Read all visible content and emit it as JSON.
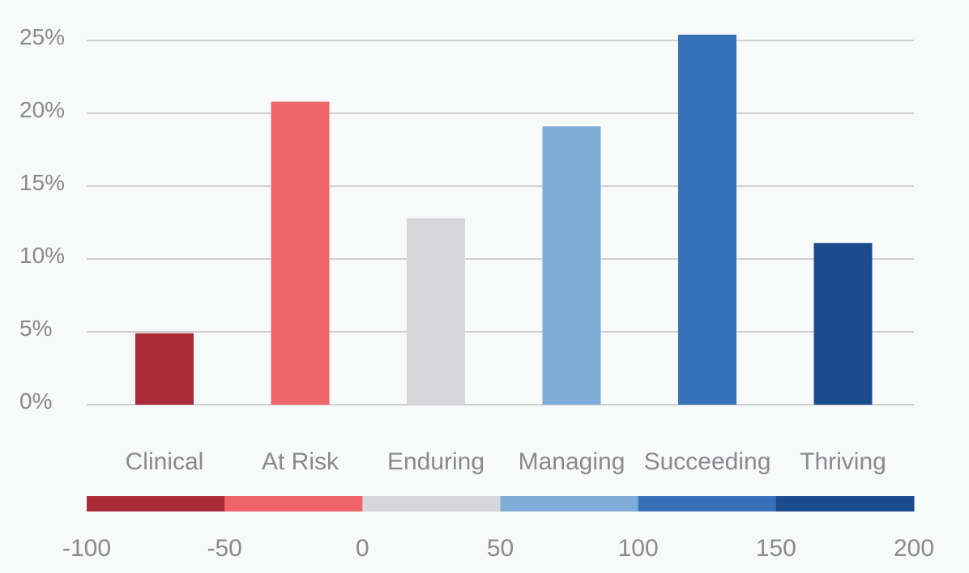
{
  "chart_data": {
    "type": "bar",
    "categories": [
      "Clinical",
      "At Risk",
      "Enduring",
      "Managing",
      "Succeeding",
      "Thriving"
    ],
    "values": [
      4.9,
      20.8,
      12.8,
      19.1,
      25.4,
      11.1
    ],
    "colors": [
      "#a82b37",
      "#ef6569",
      "#d6d6db",
      "#80add7",
      "#3772b8",
      "#1a4b8c"
    ],
    "ylim": [
      0,
      25
    ],
    "yticks": [
      0,
      5,
      10,
      15,
      20,
      25
    ],
    "ytick_labels": [
      "0%",
      "5%",
      "10%",
      "15%",
      "20%",
      "25%"
    ],
    "grid": true,
    "color_scale": {
      "colors": [
        "#a82b37",
        "#ef6569",
        "#d6d6db",
        "#80add7",
        "#3772b8",
        "#1a4b8c"
      ],
      "ticks": [
        "-100",
        "-50",
        "0",
        "50",
        "100",
        "150",
        "200"
      ]
    }
  }
}
